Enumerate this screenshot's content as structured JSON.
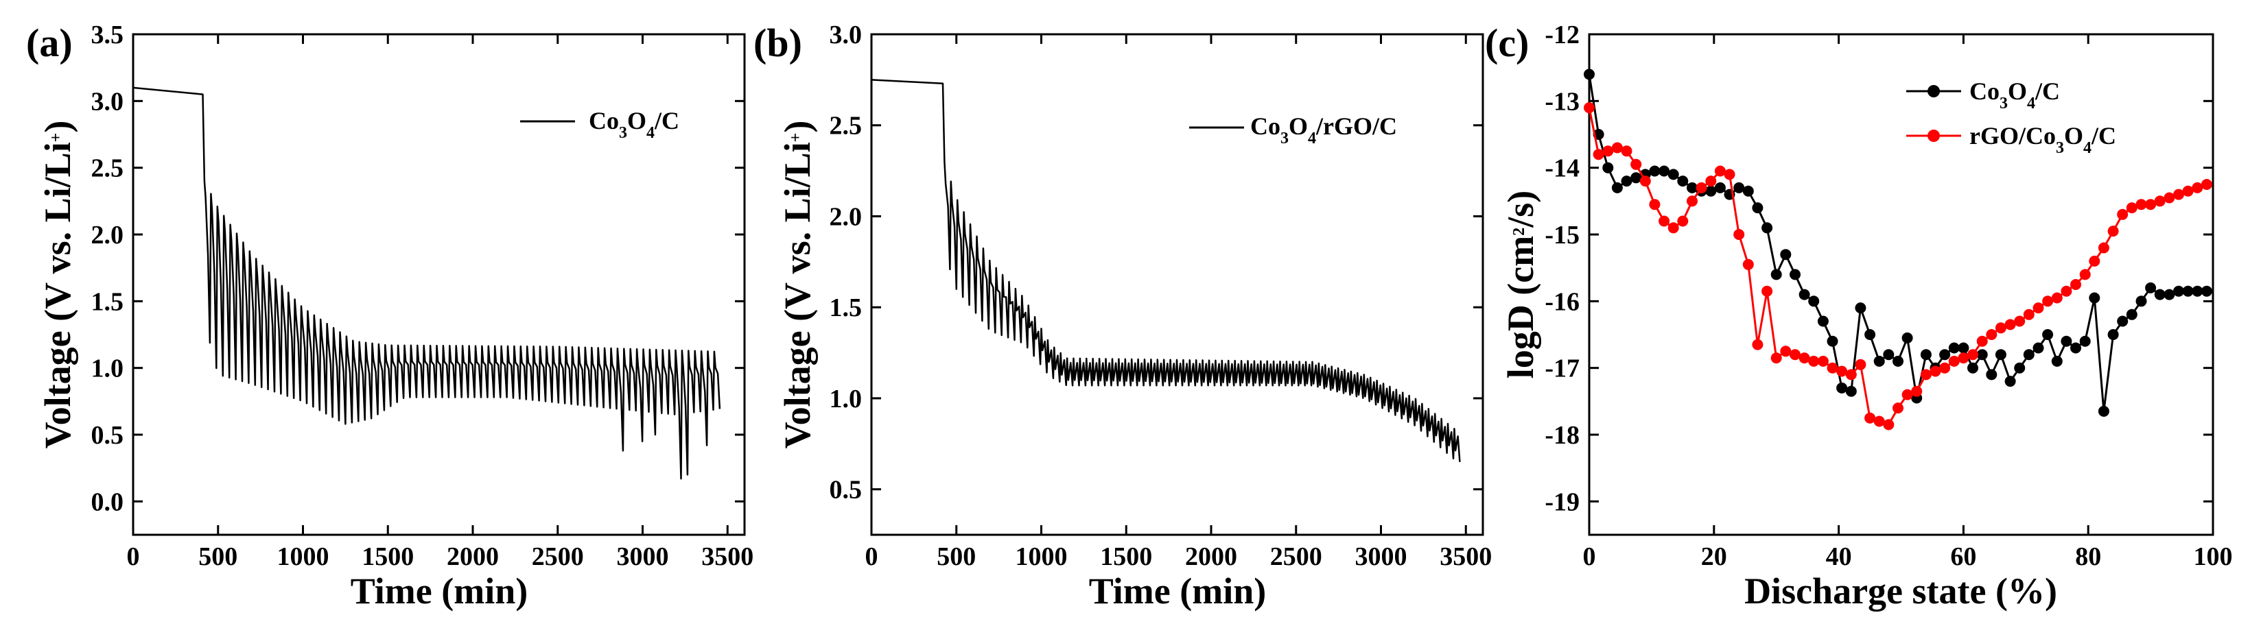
{
  "figure_panels": [
    "(a)",
    "(b)",
    "(c)"
  ],
  "chart_data": [
    {
      "panel": "(a)",
      "type": "line",
      "xlabel": "Time (min)",
      "ylabel_parts": [
        "Voltage (V vs. Li/Li",
        "+",
        ")"
      ],
      "xlim": [
        0,
        3600
      ],
      "ylim": [
        -0.25,
        3.5
      ],
      "xticks": [
        "0",
        "500",
        "1000",
        "1500",
        "2000",
        "2500",
        "3000",
        "3500"
      ],
      "yticks": [
        "0.0",
        "0.5",
        "1.0",
        "1.5",
        "2.0",
        "2.5",
        "3.0",
        "3.5"
      ],
      "legend_parts": [
        "Co",
        "3",
        "O",
        "4",
        "/C"
      ],
      "legend_position": "top-right",
      "series": [
        {
          "name": "Co3O4/C",
          "color": "#000000",
          "initial_plateau": {
            "x": [
              0,
              410
            ],
            "y": [
              3.1,
              3.05
            ]
          },
          "pulse_start": 420,
          "pulse_period": 38,
          "pulse_count": 80,
          "pulse_peak_voltage": [
            [
              420,
              2.4
            ],
            [
              500,
              2.2
            ],
            [
              700,
              1.85
            ],
            [
              1000,
              1.45
            ],
            [
              1300,
              1.2
            ],
            [
              1500,
              1.17
            ],
            [
              2500,
              1.16
            ],
            [
              3500,
              1.12
            ]
          ],
          "pulse_trough_voltage": [
            [
              420,
              1.35
            ],
            [
              500,
              0.95
            ],
            [
              700,
              0.88
            ],
            [
              1000,
              0.75
            ],
            [
              1250,
              0.58
            ],
            [
              1400,
              0.62
            ],
            [
              1600,
              0.78
            ],
            [
              2200,
              0.78
            ],
            [
              2800,
              0.7
            ],
            [
              3200,
              0.65
            ],
            [
              3500,
              0.7
            ]
          ],
          "deep_troughs": [
            [
              2900,
              0.38
            ],
            [
              3000,
              0.45
            ],
            [
              3060,
              0.5
            ],
            [
              3240,
              0.17
            ],
            [
              3280,
              0.2
            ],
            [
              3390,
              0.42
            ]
          ]
        }
      ]
    },
    {
      "panel": "(b)",
      "type": "line",
      "xlabel": "Time (min)",
      "ylabel_parts": [
        "Voltage (V vs. Li/Li",
        "+",
        ")"
      ],
      "xlim": [
        0,
        3600
      ],
      "ylim": [
        0.25,
        3.0
      ],
      "xticks": [
        "0",
        "500",
        "1000",
        "1500",
        "2000",
        "2500",
        "3000",
        "3500"
      ],
      "yticks": [
        "0.5",
        "1.0",
        "1.5",
        "2.0",
        "2.5",
        "3.0"
      ],
      "legend_parts": [
        "Co",
        "3",
        "O",
        "4",
        "/rGO/C"
      ],
      "legend_position": "top-right",
      "series": [
        {
          "name": "Co3O4/rGO/C",
          "color": "#000000",
          "initial_plateau": {
            "x": [
              0,
              420
            ],
            "y": [
              2.75,
              2.73
            ]
          },
          "pulse_start": 430,
          "pulse_period": 38,
          "pulse_count": 80,
          "pulse_peak_voltage": [
            [
              430,
              2.3
            ],
            [
              500,
              2.1
            ],
            [
              700,
              1.75
            ],
            [
              900,
              1.55
            ],
            [
              1050,
              1.3
            ],
            [
              1150,
              1.22
            ],
            [
              2600,
              1.2
            ],
            [
              2900,
              1.13
            ],
            [
              3200,
              1.0
            ],
            [
              3450,
              0.82
            ]
          ],
          "pulse_trough_voltage": [
            [
              430,
              1.8
            ],
            [
              500,
              1.6
            ],
            [
              700,
              1.37
            ],
            [
              900,
              1.3
            ],
            [
              1050,
              1.12
            ],
            [
              1150,
              1.07
            ],
            [
              2600,
              1.07
            ],
            [
              2900,
              1.0
            ],
            [
              3200,
              0.85
            ],
            [
              3450,
              0.65
            ]
          ]
        }
      ]
    },
    {
      "panel": "(c)",
      "type": "line",
      "xlabel": "Discharge state (%)",
      "ylabel_parts": [
        "logD (cm",
        "2",
        "/s)"
      ],
      "xlim": [
        0,
        100
      ],
      "ylim": [
        -19.5,
        -12
      ],
      "xticks": [
        "0",
        "20",
        "40",
        "60",
        "80",
        "100"
      ],
      "yticks": [
        "-12",
        "-13",
        "-14",
        "-15",
        "-16",
        "-17",
        "-18",
        "-19"
      ],
      "legend_position": "top-right",
      "series": [
        {
          "name": "Co3O4/C",
          "legend_parts": [
            "Co",
            "3",
            "O",
            "4",
            "/C"
          ],
          "color": "#000000",
          "x": [
            0,
            1.5,
            3,
            4.5,
            6,
            7.5,
            9,
            10.5,
            12,
            13.5,
            15,
            16.5,
            18,
            19.5,
            21,
            22.5,
            24,
            25.5,
            27,
            28.5,
            30,
            31.5,
            33,
            34.5,
            36,
            37.5,
            39,
            40.5,
            42,
            43.5,
            45,
            46.5,
            48,
            49.5,
            51,
            52.5,
            54,
            55.5,
            57,
            58.5,
            60,
            61.5,
            63,
            64.5,
            66,
            67.5,
            69,
            70.5,
            72,
            73.5,
            75,
            76.5,
            78,
            79.5,
            81,
            82.5,
            84,
            85.5,
            87,
            88.5,
            90,
            91.5,
            93,
            94.5,
            96,
            97.5,
            99
          ],
          "y": [
            -12.6,
            -13.5,
            -14.0,
            -14.3,
            -14.2,
            -14.15,
            -14.1,
            -14.05,
            -14.05,
            -14.1,
            -14.2,
            -14.3,
            -14.35,
            -14.35,
            -14.3,
            -14.4,
            -14.3,
            -14.35,
            -14.6,
            -14.9,
            -15.6,
            -15.3,
            -15.6,
            -15.9,
            -16.0,
            -16.3,
            -16.6,
            -17.3,
            -17.35,
            -16.1,
            -16.5,
            -16.9,
            -16.8,
            -16.9,
            -16.55,
            -17.45,
            -16.8,
            -17.0,
            -16.8,
            -16.7,
            -16.7,
            -17.0,
            -16.8,
            -17.1,
            -16.8,
            -17.2,
            -17.0,
            -16.8,
            -16.7,
            -16.5,
            -16.9,
            -16.6,
            -16.7,
            -16.6,
            -15.95,
            -17.65,
            -16.5,
            -16.3,
            -16.2,
            -16.0,
            -15.8,
            -15.9,
            -15.9,
            -15.85,
            -15.85,
            -15.85,
            -15.85
          ]
        },
        {
          "name": "rGO/Co3O4/C",
          "legend_parts": [
            "rGO/Co",
            "3",
            "O",
            "4",
            "/C"
          ],
          "color": "#ff0000",
          "x": [
            0,
            1.5,
            3,
            4.5,
            6,
            7.5,
            9,
            10.5,
            12,
            13.5,
            15,
            16.5,
            18,
            19.5,
            21,
            22.5,
            24,
            25.5,
            27,
            28.5,
            30,
            31.5,
            33,
            34.5,
            36,
            37.5,
            39,
            40.5,
            42,
            43.5,
            45,
            46.5,
            48,
            49.5,
            51,
            52.5,
            54,
            55.5,
            57,
            58.5,
            60,
            61.5,
            63,
            64.5,
            66,
            67.5,
            69,
            70.5,
            72,
            73.5,
            75,
            76.5,
            78,
            79.5,
            81,
            82.5,
            84,
            85.5,
            87,
            88.5,
            90,
            91.5,
            93,
            94.5,
            96,
            97.5,
            99
          ],
          "y": [
            -13.1,
            -13.8,
            -13.75,
            -13.7,
            -13.75,
            -13.95,
            -14.2,
            -14.55,
            -14.8,
            -14.9,
            -14.8,
            -14.5,
            -14.3,
            -14.2,
            -14.05,
            -14.1,
            -15.0,
            -15.45,
            -16.65,
            -15.85,
            -16.85,
            -16.75,
            -16.8,
            -16.85,
            -16.9,
            -16.9,
            -17.0,
            -17.05,
            -17.1,
            -16.95,
            -17.75,
            -17.8,
            -17.85,
            -17.6,
            -17.4,
            -17.35,
            -17.1,
            -17.05,
            -17.0,
            -16.9,
            -16.85,
            -16.8,
            -16.6,
            -16.5,
            -16.4,
            -16.35,
            -16.3,
            -16.2,
            -16.1,
            -16.0,
            -15.95,
            -15.85,
            -15.75,
            -15.6,
            -15.4,
            -15.2,
            -14.95,
            -14.7,
            -14.6,
            -14.55,
            -14.55,
            -14.5,
            -14.45,
            -14.4,
            -14.35,
            -14.3,
            -14.25
          ]
        }
      ]
    }
  ]
}
